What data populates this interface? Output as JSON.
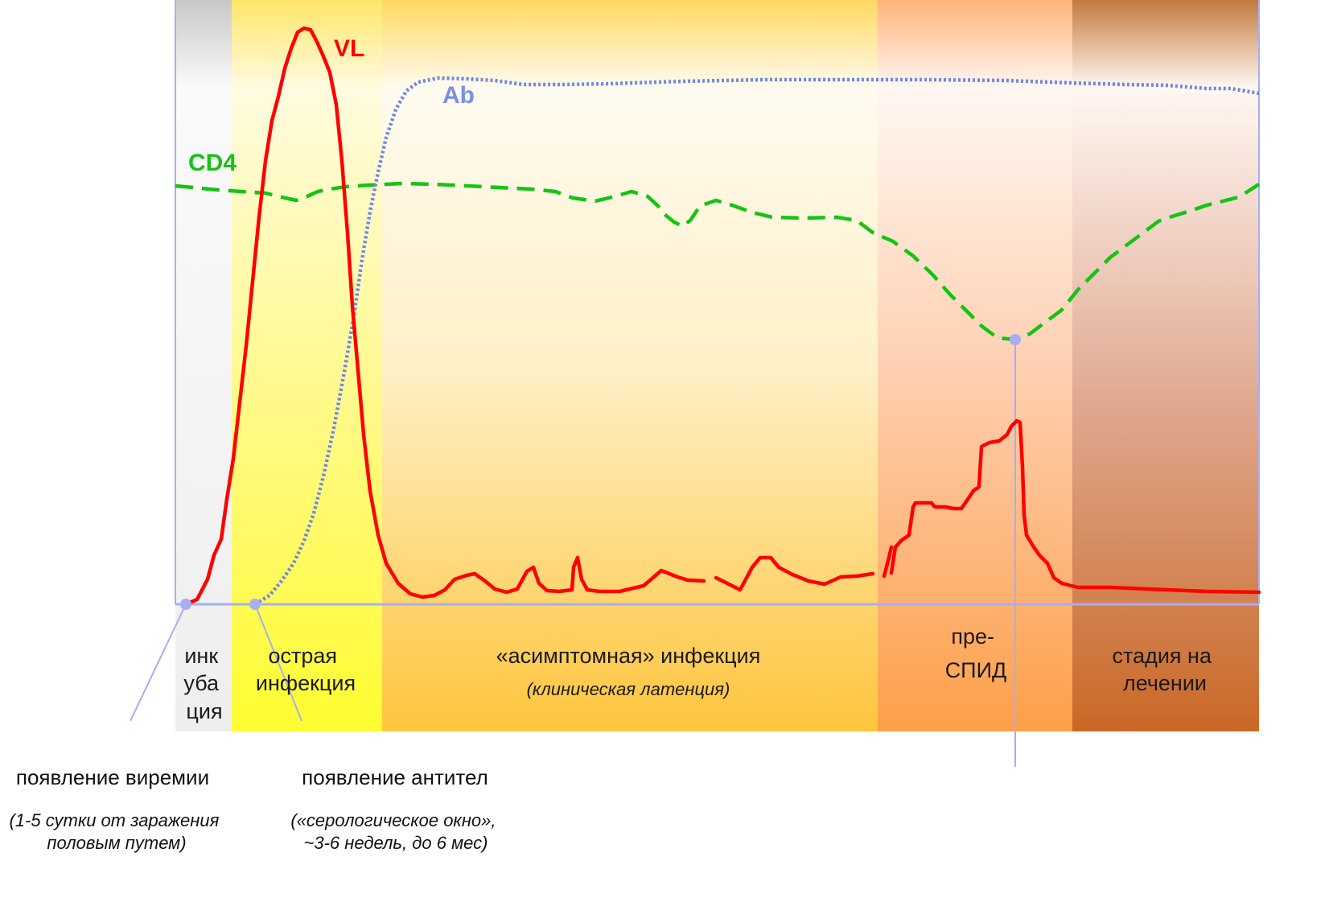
{
  "colors": {
    "vl": "#ff0000",
    "ab": "#7890e8",
    "cd4": "#14c414",
    "marker": "#a8aef0",
    "axis": "#a8aef0"
  },
  "curves": {
    "vl_label": "VL",
    "ab_label": "Ab",
    "cd4_label": "CD4"
  },
  "stages": [
    {
      "key": "incubation",
      "lines": [
        "инк",
        "уба",
        "ция"
      ],
      "sub": ""
    },
    {
      "key": "acute",
      "lines": [
        "острая",
        "инфекция"
      ],
      "sub": ""
    },
    {
      "key": "asymptomatic",
      "lines": [
        "«асимптомная» инфекция"
      ],
      "sub": "(клиническая латенция)"
    },
    {
      "key": "pre-aids",
      "lines": [
        "пре-",
        "СПИД"
      ],
      "sub": ""
    },
    {
      "key": "treatment",
      "lines": [
        "стадия на",
        "лечении"
      ],
      "sub": ""
    }
  ],
  "annotations": {
    "viremia": {
      "title": "появление виремии",
      "note_lines": [
        "(1-5 сутки от заражения",
        "половым путем)"
      ]
    },
    "antibodies": {
      "title": "появление антител",
      "note_lines": [
        "(«серологическое окно»,",
        "~3-6 недель, до 6 мес)"
      ]
    }
  }
}
